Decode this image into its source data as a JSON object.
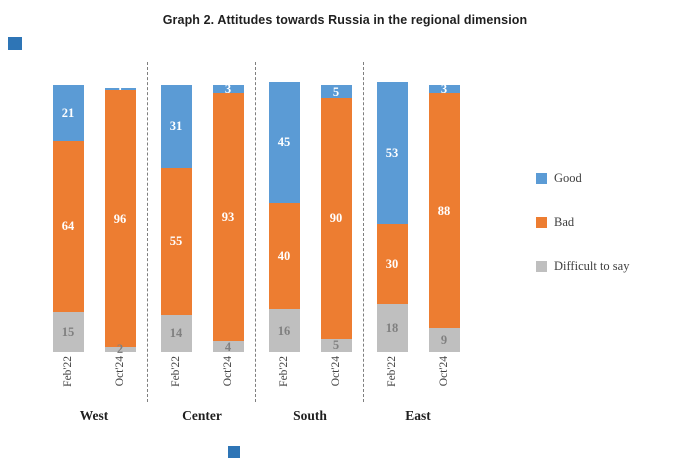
{
  "chart_data": {
    "type": "bar",
    "stacked": true,
    "title": "Graph 2. Attitudes towards Russia in the regional dimension",
    "groups": [
      "West",
      "Center",
      "South",
      "East"
    ],
    "categories": [
      "Feb'22",
      "Oct'24"
    ],
    "series": [
      {
        "name": "Good",
        "color": "#5B9BD5",
        "label_color": "#FFFFFF",
        "values": [
          [
            21,
            1
          ],
          [
            31,
            3
          ],
          [
            45,
            5
          ],
          [
            53,
            3
          ]
        ]
      },
      {
        "name": "Bad",
        "color": "#ED7D31",
        "label_color": "#FFFFFF",
        "values": [
          [
            64,
            96
          ],
          [
            55,
            93
          ],
          [
            40,
            90
          ],
          [
            30,
            88
          ]
        ]
      },
      {
        "name": "Difficult to say",
        "color": "#BFBFBF",
        "label_color": "#808080",
        "values": [
          [
            15,
            2
          ],
          [
            14,
            4
          ],
          [
            16,
            5
          ],
          [
            18,
            9
          ]
        ]
      }
    ],
    "stack_order_bottom_to_top": [
      "Difficult to say",
      "Bad",
      "Good"
    ],
    "value_labels": true,
    "legend": [
      "Good",
      "Bad",
      "Difficult to say"
    ],
    "legend_position": "right",
    "ylim": [
      0,
      105
    ],
    "grid": false,
    "group_separator_style": "dashed"
  },
  "decorations": {
    "blue_square_color": "#2E75B6"
  }
}
